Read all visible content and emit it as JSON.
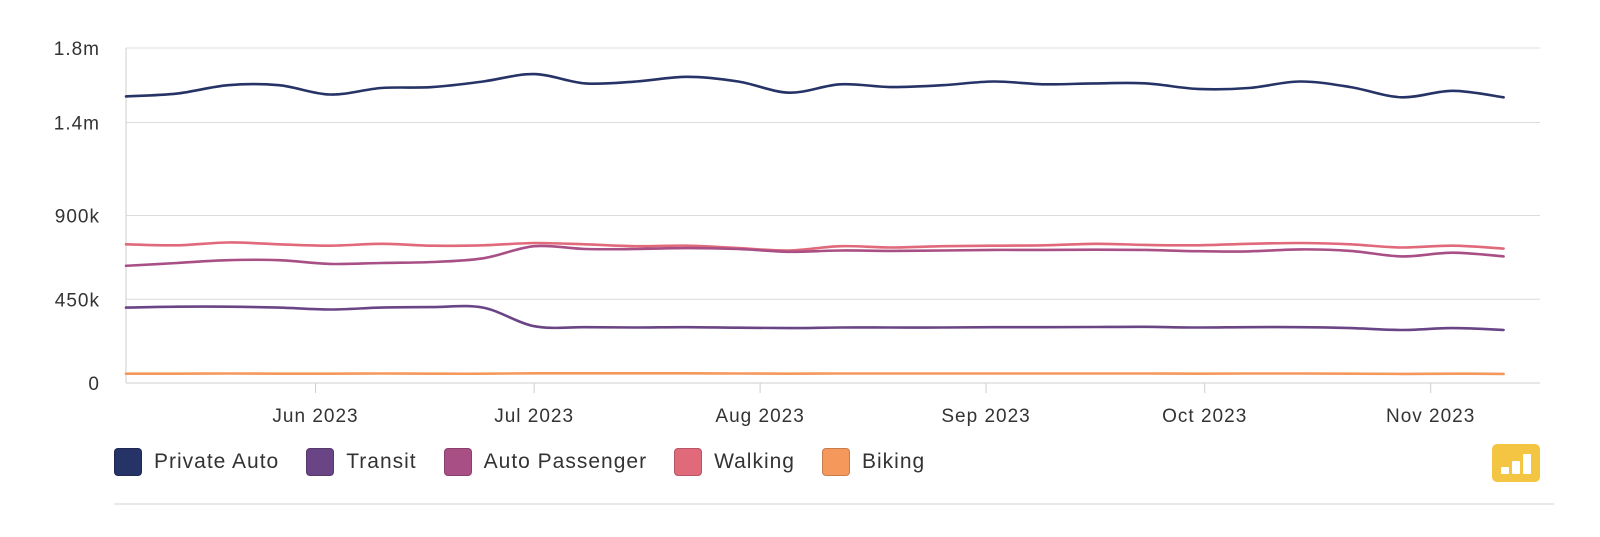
{
  "chart_data": {
    "type": "line",
    "x": [
      "2023-05-06",
      "2023-05-13",
      "2023-05-20",
      "2023-05-27",
      "2023-06-03",
      "2023-06-10",
      "2023-06-17",
      "2023-06-24",
      "2023-07-01",
      "2023-07-08",
      "2023-07-15",
      "2023-07-22",
      "2023-07-29",
      "2023-08-05",
      "2023-08-12",
      "2023-08-19",
      "2023-08-26",
      "2023-09-02",
      "2023-09-09",
      "2023-09-16",
      "2023-09-23",
      "2023-09-30",
      "2023-10-07",
      "2023-10-14",
      "2023-10-21",
      "2023-10-28",
      "2023-11-04",
      "2023-11-11"
    ],
    "x_tick_labels": [
      {
        "date": "2023-06-01",
        "label": "Jun 2023"
      },
      {
        "date": "2023-07-01",
        "label": "Jul 2023"
      },
      {
        "date": "2023-08-01",
        "label": "Aug 2023"
      },
      {
        "date": "2023-09-01",
        "label": "Sep 2023"
      },
      {
        "date": "2023-10-01",
        "label": "Oct 2023"
      },
      {
        "date": "2023-11-01",
        "label": "Nov 2023"
      }
    ],
    "x_range": [
      "2023-05-06",
      "2023-11-16"
    ],
    "y_ticks": [
      0,
      450000,
      900000,
      1400000,
      1800000
    ],
    "y_tick_labels": [
      "0",
      "450k",
      "900k",
      "1.4m",
      "1.8m"
    ],
    "ylim": [
      0,
      1800000
    ],
    "grid": true,
    "legend_position": "bottom-left",
    "series": [
      {
        "name": "Private Auto",
        "color": "#263366",
        "values": [
          1540000,
          1555000,
          1600000,
          1600000,
          1550000,
          1585000,
          1590000,
          1620000,
          1660000,
          1610000,
          1620000,
          1645000,
          1620000,
          1560000,
          1605000,
          1590000,
          1600000,
          1620000,
          1605000,
          1610000,
          1610000,
          1580000,
          1585000,
          1620000,
          1590000,
          1535000,
          1570000,
          1535000
        ]
      },
      {
        "name": "Transit",
        "color": "#6a4585",
        "values": [
          405000,
          410000,
          410000,
          405000,
          395000,
          405000,
          408000,
          405000,
          305000,
          300000,
          298000,
          300000,
          297000,
          295000,
          298000,
          298000,
          298000,
          300000,
          300000,
          301000,
          302000,
          298000,
          300000,
          300000,
          295000,
          285000,
          295000,
          285000
        ]
      },
      {
        "name": "Auto Passenger",
        "color": "#a84f85",
        "values": [
          630000,
          645000,
          660000,
          660000,
          640000,
          645000,
          650000,
          670000,
          735000,
          720000,
          720000,
          725000,
          720000,
          705000,
          712000,
          710000,
          712000,
          715000,
          715000,
          716000,
          715000,
          708000,
          707000,
          718000,
          710000,
          680000,
          700000,
          680000
        ]
      },
      {
        "name": "Walking",
        "color": "#e0697a",
        "values": [
          745000,
          740000,
          755000,
          745000,
          738000,
          748000,
          738000,
          740000,
          752000,
          745000,
          735000,
          738000,
          725000,
          712000,
          735000,
          728000,
          735000,
          738000,
          740000,
          748000,
          742000,
          740000,
          748000,
          752000,
          745000,
          728000,
          738000,
          722000
        ]
      },
      {
        "name": "Biking",
        "color": "#f4985c",
        "values": [
          50000,
          50000,
          51000,
          50000,
          50000,
          51000,
          50000,
          50000,
          52000,
          52000,
          52000,
          52000,
          51000,
          50000,
          51000,
          51000,
          51000,
          51000,
          51000,
          51000,
          51000,
          50000,
          51000,
          51000,
          50000,
          49000,
          50000,
          49000
        ]
      }
    ]
  },
  "toolbar": {
    "chart_toggle_icon": "bar-chart-icon",
    "chart_toggle_color": "#f4c542"
  }
}
